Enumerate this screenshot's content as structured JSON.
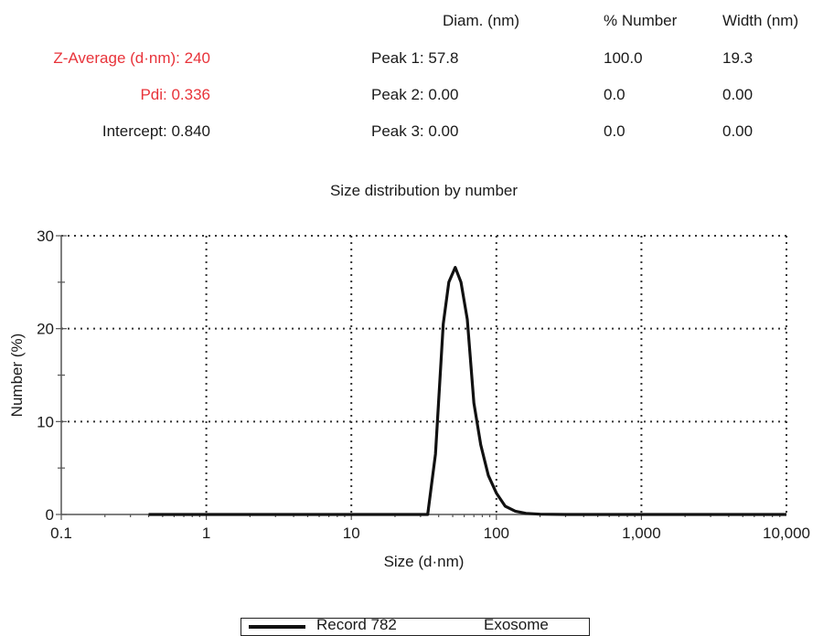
{
  "summary": {
    "z_average": "Z-Average (d·nm): 240",
    "pdi": "Pdi: 0.336",
    "intercept": "Intercept: 0.840"
  },
  "peaks_table": {
    "headers": [
      "Diam. (nm)",
      "% Number",
      "Width (nm)"
    ],
    "rows": [
      {
        "label": "Peak 1: 57.8",
        "number": "100.0",
        "width": "19.3"
      },
      {
        "label": "Peak 2: 0.00",
        "number": "0.0",
        "width": "0.00"
      },
      {
        "label": "Peak 3: 0.00",
        "number": "0.0",
        "width": "0.00"
      }
    ]
  },
  "colors": {
    "highlight": "#e8333a",
    "line": "#111111",
    "grid": "#333333"
  },
  "chart_data": {
    "type": "line",
    "title": "Size distribution by number",
    "xlabel": "Size (d·nm)",
    "ylabel": "Number (%)",
    "x_scale": "log",
    "xlim": [
      0.1,
      10000
    ],
    "ylim": [
      0,
      30
    ],
    "x_ticks": [
      0.1,
      1,
      10,
      100,
      1000,
      10000
    ],
    "x_tick_labels": [
      "0.1",
      "1",
      "10",
      "100",
      "1,000",
      "10,000"
    ],
    "y_ticks": [
      0,
      10,
      20,
      30
    ],
    "y_tick_labels": [
      "0",
      "10",
      "20",
      "30"
    ],
    "grid": true,
    "legend_position": "bottom",
    "series": [
      {
        "name": "Record 782",
        "sample": "Exosome",
        "x": [
          0.4,
          1,
          10,
          30,
          33.6,
          38,
          43,
          47,
          52,
          57,
          63,
          70,
          78,
          88,
          100,
          115,
          135,
          160,
          200,
          300,
          1000,
          10000
        ],
        "y": [
          0,
          0,
          0,
          0,
          0,
          6.5,
          20.5,
          25,
          26.6,
          25,
          21,
          12,
          7.5,
          4.2,
          2.3,
          0.9,
          0.35,
          0.12,
          0.03,
          0,
          0,
          0
        ]
      }
    ]
  }
}
